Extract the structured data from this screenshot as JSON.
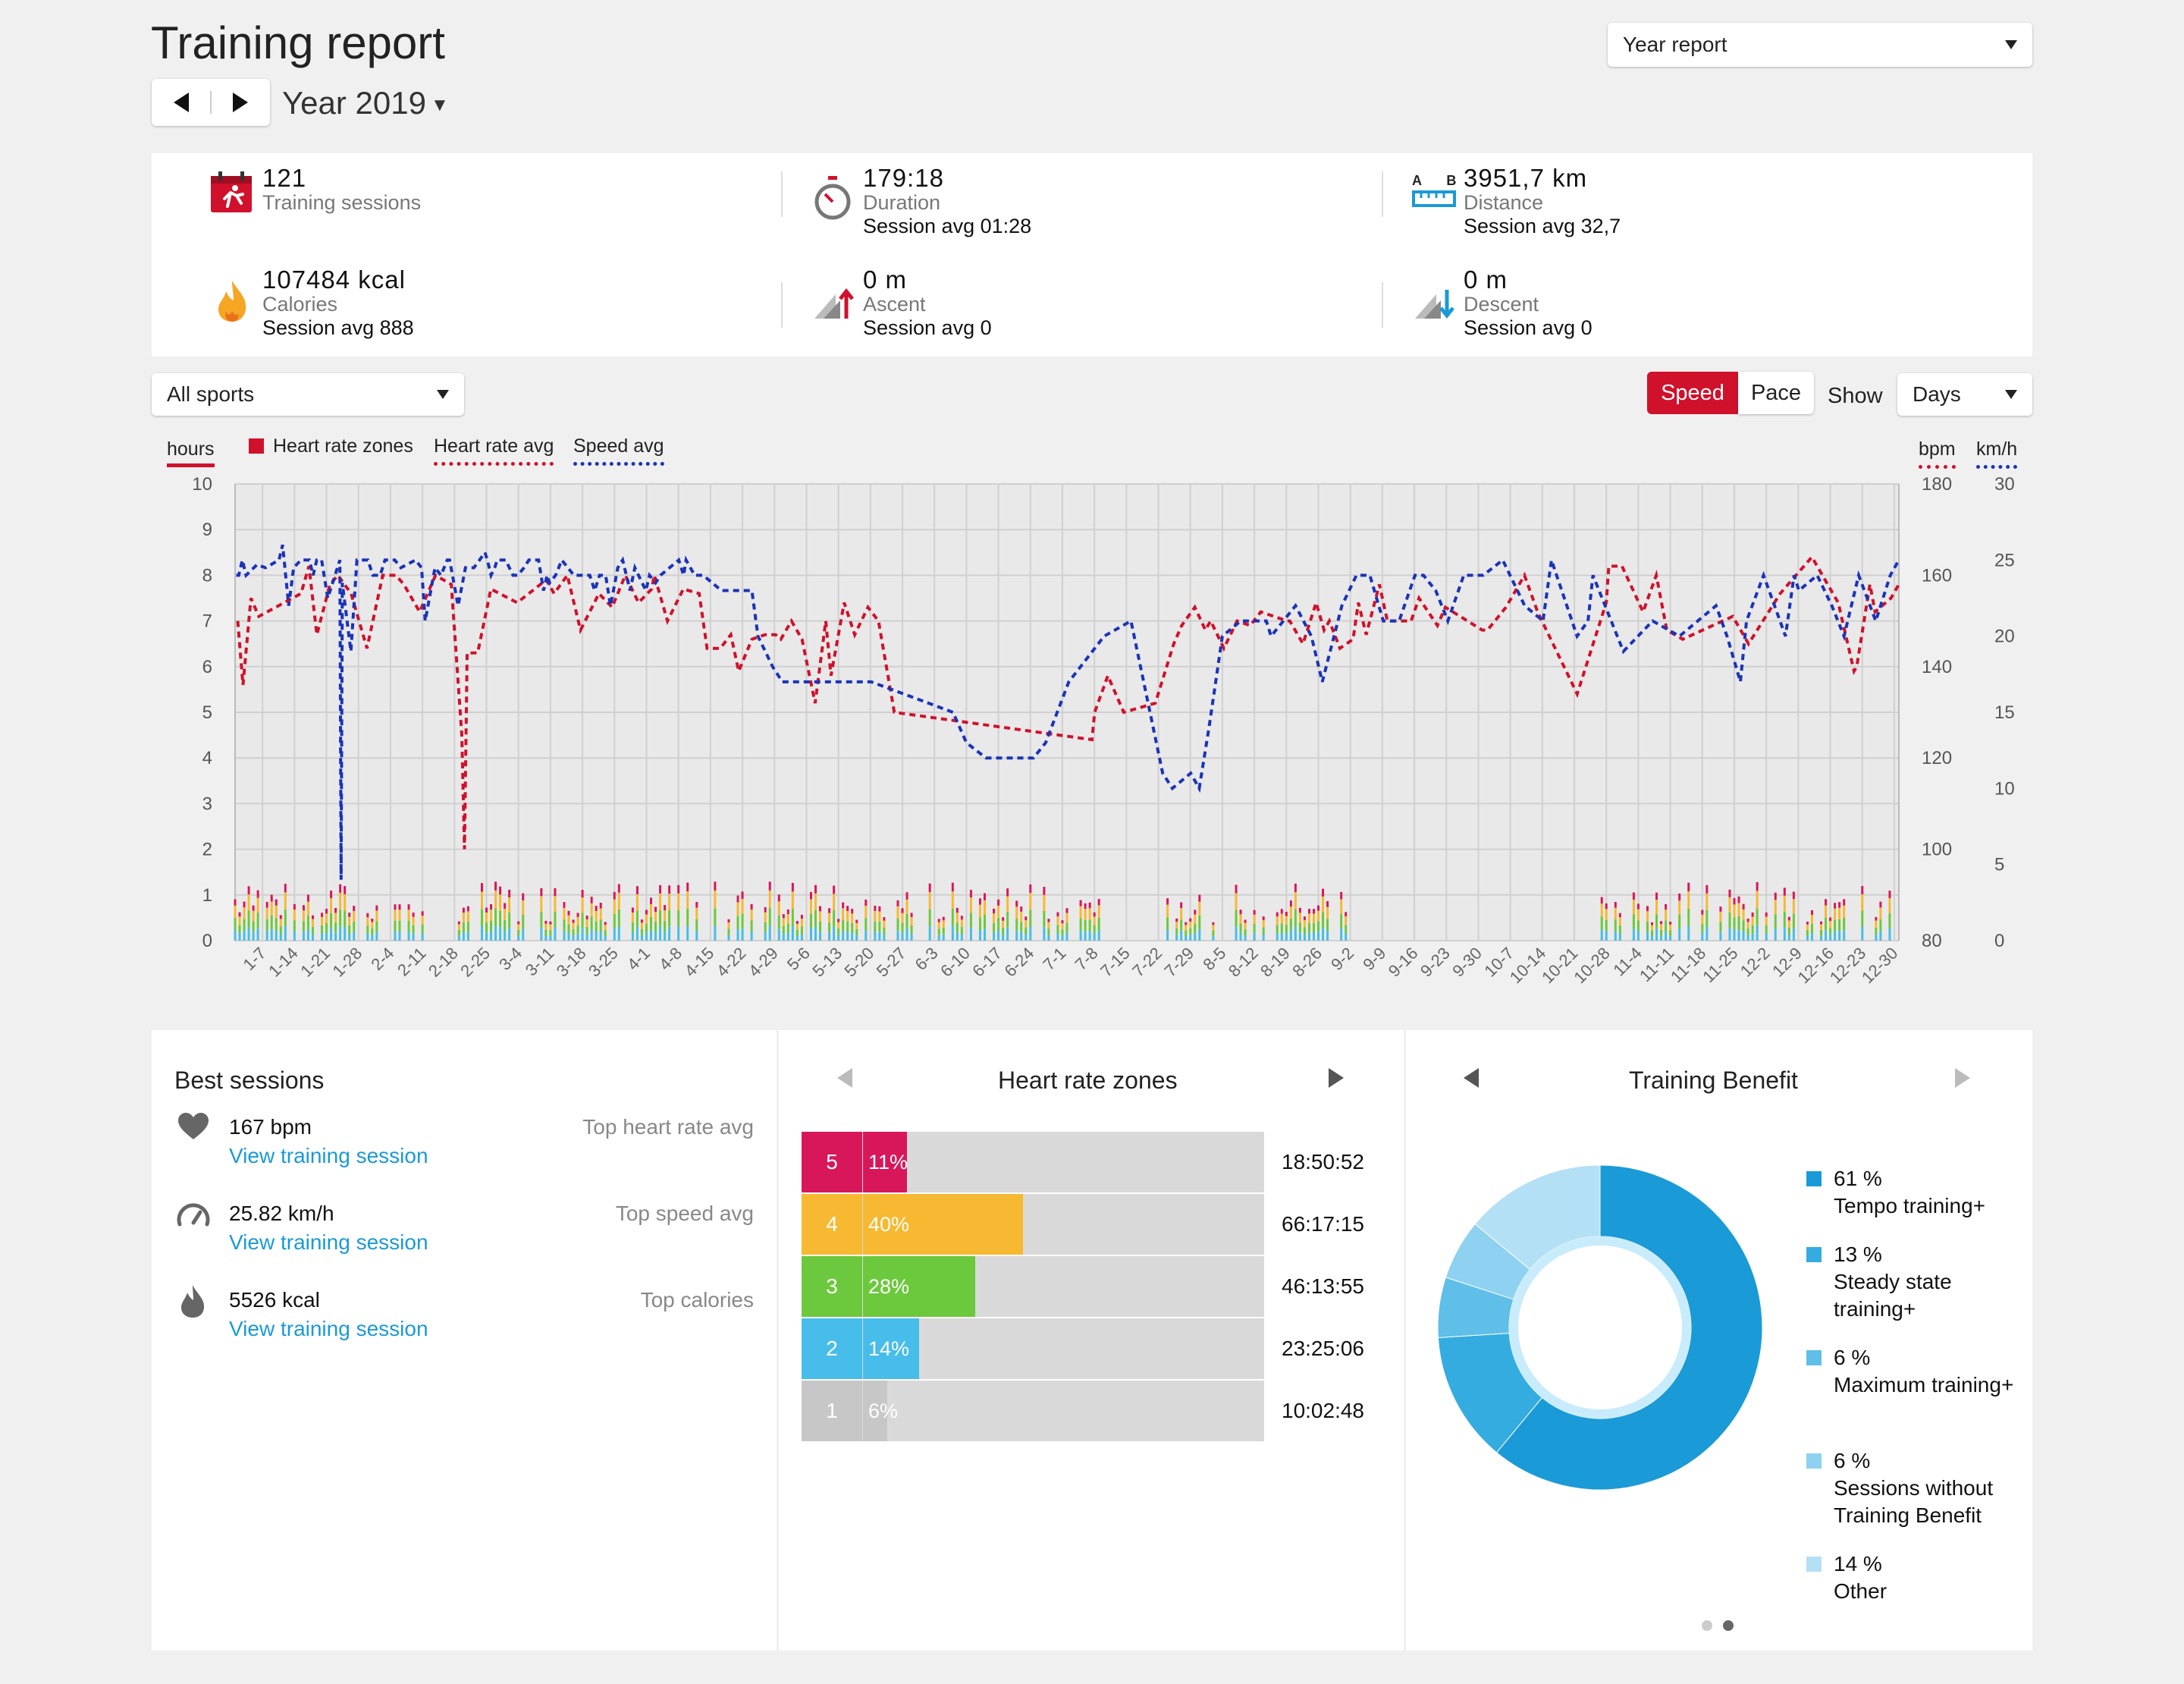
{
  "header": {
    "title": "Training report",
    "period": "Year 2019",
    "report_select": "Year report"
  },
  "summary": {
    "sessions": {
      "value": "121",
      "label": "Training sessions"
    },
    "duration": {
      "value": "179:18",
      "label": "Duration",
      "avg": "Session avg 01:28"
    },
    "distance": {
      "value": "3951,7 km",
      "label": "Distance",
      "avg": "Session avg 32,7",
      "icon_letters": "A B"
    },
    "calories": {
      "value": "107484 kcal",
      "label": "Calories",
      "avg": "Session avg 888"
    },
    "ascent": {
      "value": "0 m",
      "label": "Ascent",
      "avg": "Session avg 0"
    },
    "descent": {
      "value": "0 m",
      "label": "Descent",
      "avg": "Session avg 0"
    }
  },
  "controls": {
    "sport_select": "All sports",
    "speed": "Speed",
    "pace": "Pace",
    "show_label": "Show",
    "show_select": "Days"
  },
  "colors": {
    "accent_red": "#d0112b",
    "speed_blue": "#1a33b8",
    "zone5": "#d8175b",
    "zone4": "#f6b931",
    "zone3": "#6cc83c",
    "zone2": "#47bdea",
    "zone1": "#c7c7c7",
    "link": "#1a9ad6"
  },
  "chart_data": {
    "type": "line",
    "legend": {
      "hours": "hours",
      "zones": "Heart rate zones",
      "hr_avg": "Heart rate avg",
      "speed_avg": "Speed avg",
      "bpm": "bpm",
      "kmh": "km/h"
    },
    "y_left": {
      "label": "hours",
      "range": [
        0,
        10
      ],
      "ticks": [
        "0",
        "1",
        "2",
        "3",
        "4",
        "5",
        "6",
        "7",
        "8",
        "9",
        "10"
      ]
    },
    "y_right_bpm": {
      "label": "bpm",
      "range": [
        80,
        180
      ],
      "ticks": [
        "80",
        "100",
        "120",
        "140",
        "160",
        "180"
      ]
    },
    "y_right_kmh": {
      "label": "km/h",
      "range": [
        0,
        30
      ],
      "ticks": [
        "0",
        "5",
        "10",
        "15",
        "20",
        "25",
        "30"
      ]
    },
    "x_ticks": [
      "1-7",
      "1-14",
      "1-21",
      "1-28",
      "2-4",
      "2-11",
      "2-18",
      "2-25",
      "3-4",
      "3-11",
      "3-18",
      "3-25",
      "4-1",
      "4-8",
      "4-15",
      "4-22",
      "4-29",
      "5-6",
      "5-13",
      "5-20",
      "5-27",
      "6-3",
      "6-10",
      "6-17",
      "6-24",
      "7-1",
      "7-8",
      "7-15",
      "7-22",
      "7-29",
      "8-5",
      "8-12",
      "8-19",
      "8-26",
      "9-2",
      "9-9",
      "9-16",
      "9-23",
      "9-30",
      "10-7",
      "10-14",
      "10-21",
      "10-28",
      "11-4",
      "11-11",
      "11-18",
      "11-25",
      "12-2",
      "12-9",
      "12-16",
      "12-23",
      "12-30"
    ],
    "x_day_range": [
      1,
      365
    ],
    "series": [
      {
        "name": "Heart rate avg",
        "axis": "bpm",
        "style": "dashed",
        "color": "#d0112b",
        "points": [
          [
            1,
            150
          ],
          [
            3,
            136
          ],
          [
            6,
            155
          ],
          [
            9,
            151
          ],
          [
            25,
            156
          ],
          [
            28,
            162
          ],
          [
            31,
            147
          ],
          [
            36,
            158
          ],
          [
            39,
            160
          ],
          [
            44,
            156
          ],
          [
            50,
            144
          ],
          [
            56,
            160
          ],
          [
            61,
            160
          ],
          [
            64,
            158
          ],
          [
            70,
            152
          ],
          [
            76,
            160
          ],
          [
            82,
            158
          ],
          [
            86,
            125
          ],
          [
            87,
            100
          ],
          [
            88,
            143
          ],
          [
            92,
            143
          ],
          [
            97,
            157
          ],
          [
            107,
            154
          ],
          [
            118,
            159
          ],
          [
            121,
            156
          ],
          [
            126,
            160
          ],
          [
            131,
            148
          ],
          [
            138,
            156
          ],
          [
            143,
            153
          ],
          [
            148,
            160
          ],
          [
            153,
            154
          ],
          [
            158,
            157
          ],
          [
            159,
            160
          ],
          [
            164,
            150
          ],
          [
            170,
            157
          ],
          [
            176,
            156
          ],
          [
            179,
            144
          ],
          [
            184,
            144
          ],
          [
            188,
            147
          ],
          [
            191,
            139
          ],
          [
            196,
            146
          ],
          [
            201,
            147
          ],
          [
            205,
            147
          ],
          [
            207,
            146
          ],
          [
            211,
            150
          ],
          [
            215,
            146
          ],
          [
            220,
            132
          ],
          [
            224,
            150
          ],
          [
            226,
            138
          ],
          [
            231,
            154
          ],
          [
            235,
            147
          ],
          [
            240,
            153
          ],
          [
            244,
            150
          ],
          [
            250,
            130
          ],
          [
            325,
            124
          ],
          [
            326,
            130
          ],
          [
            331,
            138
          ],
          [
            337,
            130
          ],
          [
            349,
            132
          ],
          [
            356,
            145
          ],
          [
            359,
            149
          ],
          [
            364,
            153
          ],
          [
            368,
            148
          ],
          [
            370,
            150
          ],
          [
            375,
            144
          ],
          [
            380,
            150
          ],
          [
            385,
            149
          ],
          [
            389,
            152
          ],
          [
            399,
            150
          ],
          [
            400,
            150
          ],
          [
            405,
            145
          ],
          [
            410,
            154
          ],
          [
            413,
            148
          ],
          [
            415,
            150
          ],
          [
            419,
            144
          ],
          [
            424,
            146
          ],
          [
            426,
            154
          ],
          [
            429,
            147
          ],
          [
            434,
            158
          ],
          [
            437,
            150
          ],
          [
            446,
            150
          ],
          [
            449,
            155
          ],
          [
            456,
            149
          ],
          [
            459,
            153
          ],
          [
            473,
            148
          ],
          [
            475,
            148
          ],
          [
            482,
            153
          ],
          [
            489,
            160
          ],
          [
            494,
            152
          ],
          [
            509,
            134
          ],
          [
            520,
            154
          ],
          [
            521,
            162
          ],
          [
            526,
            162
          ],
          [
            534,
            152
          ],
          [
            539,
            160
          ],
          [
            543,
            148
          ],
          [
            549,
            146
          ],
          [
            568,
            151
          ],
          [
            574,
            145
          ],
          [
            586,
            156
          ],
          [
            598,
            164
          ],
          [
            608,
            154
          ],
          [
            614,
            139
          ],
          [
            615,
            140
          ],
          [
            620,
            158
          ],
          [
            622,
            152
          ],
          [
            628,
            155
          ],
          [
            631,
            158
          ]
        ]
      },
      {
        "name": "Speed avg",
        "axis": "kmh",
        "style": "dashed",
        "color": "#1a33b8",
        "points": [
          [
            1,
            24
          ],
          [
            3,
            24
          ],
          [
            6,
            25
          ],
          [
            9,
            24
          ],
          [
            18,
            24.7
          ],
          [
            25,
            24.5
          ],
          [
            36,
            25
          ],
          [
            39,
            26
          ],
          [
            44,
            22
          ],
          [
            48,
            24.5
          ],
          [
            54,
            25
          ],
          [
            61,
            25
          ],
          [
            64,
            24
          ],
          [
            67,
            25
          ],
          [
            71,
            25
          ],
          [
            76,
            22.5
          ],
          [
            82,
            24
          ],
          [
            86,
            25
          ],
          [
            87,
            4
          ],
          [
            88,
            23.5
          ],
          [
            95,
            19
          ],
          [
            100,
            25
          ],
          [
            109,
            25
          ],
          [
            113,
            24
          ],
          [
            119,
            24
          ],
          [
            123,
            25
          ],
          [
            131,
            25
          ],
          [
            136,
            24.5
          ],
          [
            148,
            25
          ],
          [
            153,
            24.5
          ],
          [
            156,
            21
          ],
          [
            164,
            24.5
          ],
          [
            169,
            24
          ],
          [
            174,
            25
          ],
          [
            176,
            25
          ],
          [
            183,
            22
          ],
          [
            189,
            24.5
          ],
          [
            196,
            24.5
          ],
          [
            205,
            25.5
          ],
          [
            207,
            25
          ],
          [
            210,
            24
          ],
          [
            213,
            24.5
          ],
          [
            215,
            25
          ],
          [
            219,
            25
          ],
          [
            222,
            25
          ],
          [
            228,
            24
          ],
          [
            232,
            24
          ],
          [
            237,
            24.5
          ],
          [
            241,
            25
          ],
          [
            245,
            25
          ],
          [
            249,
            25
          ],
          [
            253,
            23
          ],
          [
            256,
            24
          ],
          [
            258,
            23.5
          ],
          [
            263,
            24
          ],
          [
            268,
            25
          ],
          [
            278,
            24
          ],
          [
            287,
            24
          ],
          [
            291,
            24
          ],
          [
            295,
            23
          ],
          [
            299,
            24
          ],
          [
            304,
            24
          ],
          [
            308,
            22
          ],
          [
            314,
            24.5
          ],
          [
            318,
            25
          ],
          [
            324,
            23
          ],
          [
            328,
            24.5
          ],
          [
            337,
            23
          ],
          [
            340,
            24
          ],
          [
            345,
            23.5
          ],
          [
            349,
            24
          ],
          [
            364,
            25
          ],
          [
            368,
            24
          ],
          [
            370,
            25
          ],
          [
            377,
            24
          ],
          [
            384,
            24
          ],
          [
            399,
            23
          ],
          [
            400,
            23
          ],
          [
            417,
            23
          ],
          [
            424,
            23
          ],
          [
            429,
            20
          ],
          [
            441,
            18
          ],
          [
            449,
            17
          ],
          [
            500,
            17
          ],
          [
            522,
            17
          ],
          [
            589,
            15
          ],
          [
            600,
            13
          ],
          [
            616,
            12
          ],
          [
            630,
            12
          ],
          [
            638,
            12
          ],
          [
            655,
            12
          ],
          [
            665,
            13
          ],
          [
            684,
            17
          ],
          [
            713,
            20
          ],
          [
            735,
            21
          ],
          [
            761,
            11
          ],
          [
            769,
            10
          ],
          [
            784,
            11
          ],
          [
            791,
            10
          ],
          [
            799,
            14
          ],
          [
            810,
            20
          ],
          [
            825,
            21
          ],
          [
            846,
            21
          ],
          [
            850,
            20
          ],
          [
            870,
            22
          ],
          [
            883,
            20
          ],
          [
            892,
            17
          ],
          [
            908,
            22
          ],
          [
            920,
            24
          ],
          [
            931,
            24
          ],
          [
            942,
            21
          ],
          [
            955,
            21
          ],
          [
            968,
            24
          ],
          [
            975,
            24
          ],
          [
            985,
            23
          ],
          [
            995,
            21
          ],
          [
            1008,
            24
          ],
          [
            1024,
            24
          ],
          [
            1040,
            25
          ],
          [
            1058,
            22
          ],
          [
            1073,
            21
          ],
          [
            1080,
            25
          ],
          [
            1101,
            20
          ],
          [
            1110,
            21
          ],
          [
            1114,
            24
          ],
          [
            1139,
            19
          ],
          [
            1163,
            21
          ],
          [
            1185,
            20
          ],
          [
            1215,
            22
          ],
          [
            1224,
            20
          ],
          [
            1235,
            17
          ],
          [
            1240,
            21
          ],
          [
            1254,
            24
          ],
          [
            1272,
            20
          ],
          [
            1279,
            24
          ],
          [
            1283,
            23
          ],
          [
            1298,
            24
          ],
          [
            1310,
            22
          ],
          [
            1320,
            20
          ],
          [
            1332,
            24
          ],
          [
            1346,
            21
          ],
          [
            1358,
            24
          ],
          [
            1365,
            25
          ]
        ]
      }
    ],
    "bars_note": "stacked daily heart-rate-zone bars, hours"
  },
  "best_sessions": {
    "title": "Best sessions",
    "items": [
      {
        "value": "167 bpm",
        "link": "View training session",
        "tag": "Top heart rate avg",
        "icon": "heart-icon"
      },
      {
        "value": "25.82 km/h",
        "link": "View training session",
        "tag": "Top speed avg",
        "icon": "speedometer-icon"
      },
      {
        "value": "5526 kcal",
        "link": "View training session",
        "tag": "Top calories",
        "icon": "flame-icon"
      }
    ]
  },
  "hr_zones": {
    "title": "Heart rate zones",
    "rows": [
      {
        "zone": "5",
        "pct": "11%",
        "time": "18:50:52",
        "fraction": 0.11
      },
      {
        "zone": "4",
        "pct": "40%",
        "time": "66:17:15",
        "fraction": 0.4
      },
      {
        "zone": "3",
        "pct": "28%",
        "time": "46:13:55",
        "fraction": 0.28
      },
      {
        "zone": "2",
        "pct": "14%",
        "time": "23:25:06",
        "fraction": 0.14
      },
      {
        "zone": "1",
        "pct": "6%",
        "time": "10:02:48",
        "fraction": 0.06
      }
    ]
  },
  "training_benefit": {
    "title": "Training Benefit",
    "items": [
      {
        "pct": "61 %",
        "label": "Tempo training+",
        "value": 61,
        "color": "#1a9ad6"
      },
      {
        "pct": "13 %",
        "label": "Steady state training+",
        "value": 13,
        "color": "#35ace0"
      },
      {
        "pct": "6 %",
        "label": "Maximum training+",
        "value": 6,
        "color": "#5fbfe8"
      },
      {
        "pct": "6 %",
        "label": "Sessions without Training Benefit",
        "value": 6,
        "color": "#8ed1f0"
      },
      {
        "pct": "14 %",
        "label": "Other",
        "value": 14,
        "color": "#b3e0f5"
      }
    ]
  }
}
